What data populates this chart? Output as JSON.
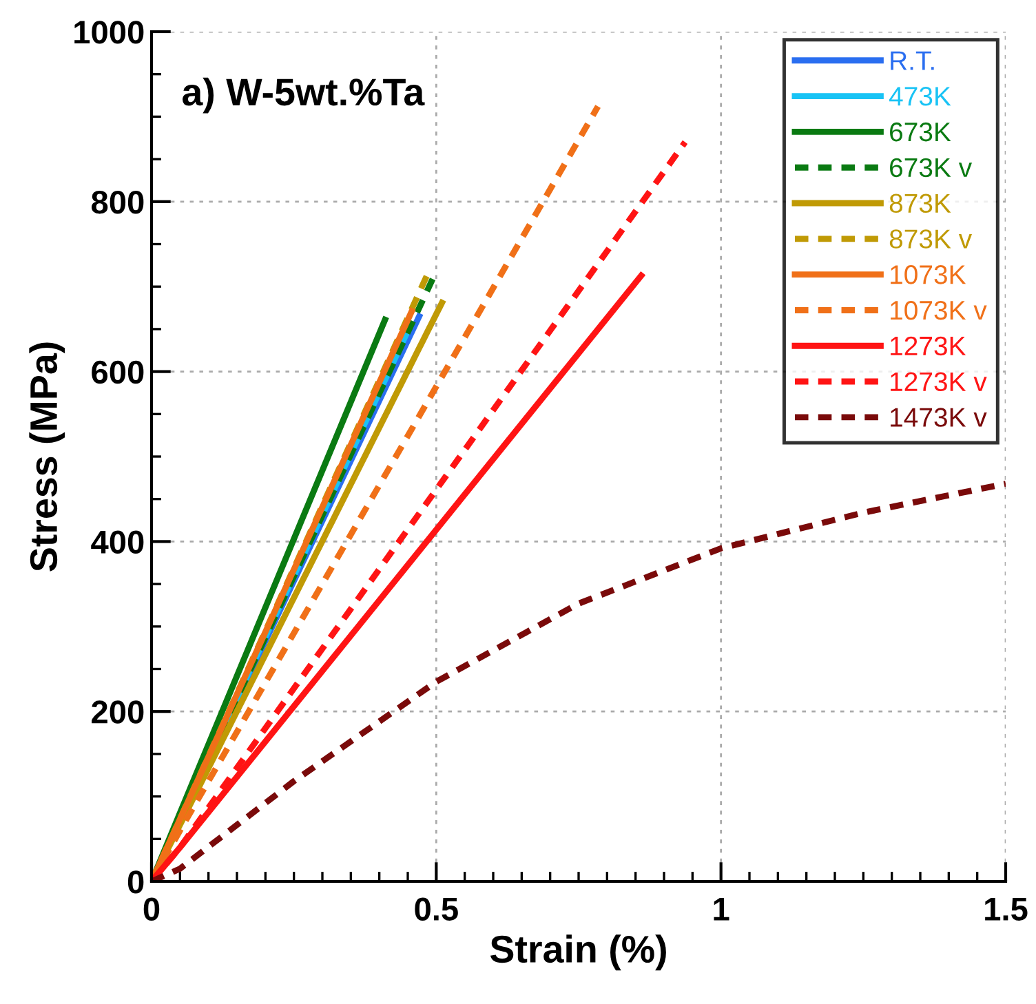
{
  "chart_data": {
    "type": "line",
    "xlabel": "Strain (%)",
    "ylabel": "Stress (MPa)",
    "annotations": [
      "a) W-5wt.%Ta"
    ],
    "xlim": [
      0,
      1.5
    ],
    "ylim": [
      0,
      1000
    ],
    "xticks": [
      0,
      0.5,
      1,
      1.5
    ],
    "yticks": [
      0,
      200,
      400,
      600,
      800,
      1000
    ],
    "grid": true,
    "legend": "top right",
    "marker": "none",
    "series": [
      {
        "name": "R.T.",
        "color": "#2a6ef0",
        "line_style": "solid",
        "x": [
          0,
          0.47
        ],
        "values": [
          0,
          665
        ]
      },
      {
        "name": "473K",
        "color": "#19c3f5",
        "line_style": "solid",
        "x": [
          0,
          0.455
        ],
        "values": [
          0,
          655
        ]
      },
      {
        "name": "673K",
        "color": "#0a7a12",
        "line_style": "solid",
        "x": [
          0,
          0.41
        ],
        "values": [
          0,
          661
        ]
      },
      {
        "name": "673K v",
        "color": "#0a7a12",
        "line_style": "dashed",
        "x": [
          0,
          0.5
        ],
        "values": [
          0,
          718
        ]
      },
      {
        "name": "873K",
        "color": "#c09a05",
        "line_style": "solid",
        "x": [
          0,
          0.51
        ],
        "values": [
          0,
          681
        ]
      },
      {
        "name": "873K v",
        "color": "#c09a05",
        "line_style": "dashed",
        "x": [
          0,
          0.487
        ],
        "values": [
          0,
          718
        ]
      },
      {
        "name": "1073K",
        "color": "#f07018",
        "line_style": "solid",
        "x": [
          0,
          0.457
        ],
        "values": [
          0,
          671
        ]
      },
      {
        "name": "1073K v",
        "color": "#f07018",
        "line_style": "dashed",
        "x": [
          0,
          0.05,
          0.784
        ],
        "values": [
          0,
          60,
          912
        ]
      },
      {
        "name": "1273K",
        "color": "#ff1414",
        "line_style": "solid",
        "x": [
          0,
          0.05,
          0.86
        ],
        "values": [
          0,
          40,
          713
        ]
      },
      {
        "name": "1273K v",
        "color": "#ff1414",
        "line_style": "dashed",
        "x": [
          0,
          0.05,
          0.937
        ],
        "values": [
          0,
          40,
          870
        ]
      },
      {
        "name": "1473K v",
        "color": "#7a0a0a",
        "line_style": "dashed",
        "x": [
          0,
          0.05,
          0.25,
          0.5,
          0.75,
          1,
          1.25,
          1.5
        ],
        "values": [
          0,
          15,
          118,
          235,
          327,
          392,
          434,
          468
        ]
      }
    ]
  }
}
